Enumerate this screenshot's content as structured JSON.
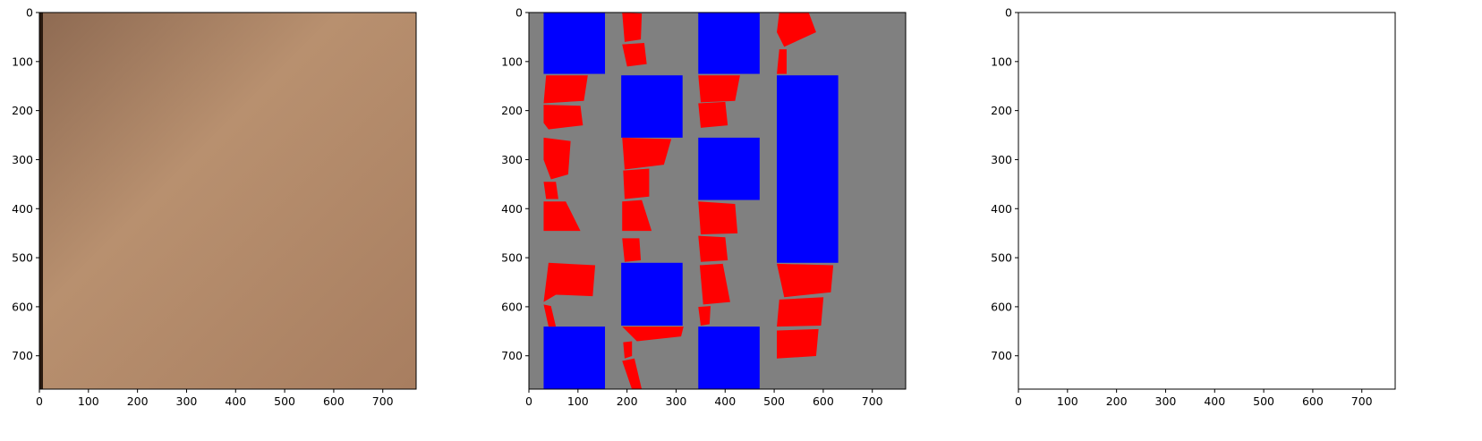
{
  "panels": [
    {
      "xlim": [
        0,
        768
      ],
      "ylim": [
        0,
        768
      ],
      "xticks": [
        0,
        100,
        200,
        300,
        400,
        500,
        600,
        700
      ],
      "yticks": [
        0,
        100,
        200,
        300,
        400,
        500,
        600,
        700
      ]
    },
    {
      "xlim": [
        0,
        768
      ],
      "ylim": [
        0,
        768
      ],
      "xticks": [
        0,
        100,
        200,
        300,
        400,
        500,
        600,
        700
      ],
      "yticks": [
        0,
        100,
        200,
        300,
        400,
        500,
        600,
        700
      ]
    },
    {
      "xlim": [
        0,
        768
      ],
      "ylim": [
        0,
        768
      ],
      "xticks": [
        0,
        100,
        200,
        300,
        400,
        500,
        600,
        700
      ],
      "yticks": [
        0,
        100,
        200,
        300,
        400,
        500,
        600,
        700
      ]
    }
  ]
}
